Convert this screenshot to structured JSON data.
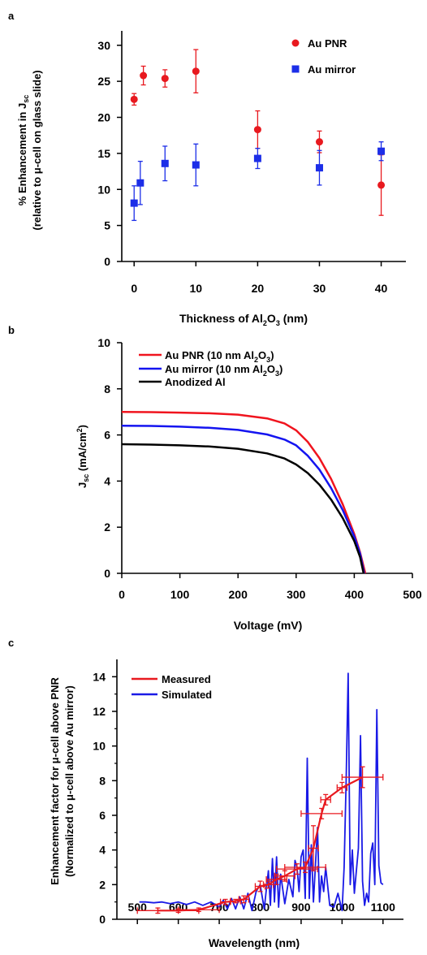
{
  "chart_data": [
    {
      "panel": "a",
      "type": "scatter",
      "title": "",
      "xlabel": "Thickness of Al2O3 (nm)",
      "xlabel_parts": {
        "pre": "Thickness of Al",
        "sub1": "2",
        "mid": "O",
        "sub2": "3",
        "post": " (nm)"
      },
      "ylabel": "% Enhancement in Jsc (relative to μ-cell on glass slide)",
      "ylabel_line1": {
        "pre": "% Enhancement in J",
        "sub": "sc"
      },
      "ylabel_line2": "(relative to μ-cell on glass slide)",
      "xlim": [
        -2,
        44
      ],
      "ylim": [
        0,
        32
      ],
      "xticks": [
        0,
        10,
        20,
        30,
        40
      ],
      "yticks": [
        0,
        5,
        10,
        15,
        20,
        25,
        30
      ],
      "legend_position": "top-right",
      "series": [
        {
          "name": "Au PNR",
          "color": "#e8191f",
          "marker": "circle",
          "x": [
            0,
            1.5,
            5,
            10,
            20,
            30,
            40
          ],
          "y": [
            22.5,
            25.8,
            25.4,
            26.4,
            18.3,
            16.6,
            10.6
          ],
          "err": [
            0.8,
            1.3,
            1.2,
            3.0,
            2.6,
            1.5,
            4.2
          ]
        },
        {
          "name": "Au mirror",
          "color": "#1c2ee8",
          "marker": "square",
          "x": [
            0,
            1,
            5,
            10,
            20,
            30,
            40
          ],
          "y": [
            8.1,
            10.9,
            13.6,
            13.4,
            14.3,
            13.0,
            15.3
          ],
          "err": [
            2.4,
            3.0,
            2.4,
            2.9,
            1.4,
            2.4,
            1.3
          ]
        }
      ]
    },
    {
      "panel": "b",
      "type": "line",
      "title": "",
      "xlabel": "Voltage (mV)",
      "ylabel": "Jsc (mA/cm2)",
      "ylabel_parts": {
        "pre": "J",
        "sub": "sc",
        "mid": " (mA/cm",
        "sup": "2",
        "post": ")"
      },
      "xlim": [
        0,
        500
      ],
      "ylim": [
        0,
        10
      ],
      "xticks": [
        0,
        100,
        200,
        300,
        400,
        500
      ],
      "yticks": [
        0,
        2,
        4,
        6,
        8,
        10
      ],
      "legend_position": "top-left",
      "series": [
        {
          "name": "Au PNR (10 nm Al2O3)",
          "label_parts": {
            "pre": "Au PNR (10 nm Al",
            "sub1": "2",
            "mid": "O",
            "sub2": "3",
            "post": ")"
          },
          "color": "#f0141e",
          "x": [
            0,
            50,
            100,
            150,
            200,
            250,
            280,
            300,
            320,
            340,
            360,
            380,
            400,
            410,
            419
          ],
          "y": [
            7.0,
            6.99,
            6.97,
            6.94,
            6.88,
            6.72,
            6.5,
            6.2,
            5.7,
            5.0,
            4.1,
            3.0,
            1.7,
            0.9,
            0
          ]
        },
        {
          "name": "Au mirror (10 nm Al2O3)",
          "label_parts": {
            "pre": "Au mirror (10 nm Al",
            "sub1": "2",
            "mid": "O",
            "sub2": "3",
            "post": ")"
          },
          "color": "#1414f0",
          "x": [
            0,
            50,
            100,
            150,
            200,
            250,
            280,
            300,
            320,
            340,
            360,
            380,
            400,
            410,
            417
          ],
          "y": [
            6.4,
            6.39,
            6.36,
            6.31,
            6.22,
            6.02,
            5.8,
            5.55,
            5.1,
            4.5,
            3.7,
            2.75,
            1.6,
            0.85,
            0
          ]
        },
        {
          "name": "Anodized Al",
          "color": "#000000",
          "x": [
            0,
            50,
            100,
            150,
            200,
            250,
            280,
            300,
            320,
            340,
            360,
            380,
            400,
            410,
            416
          ],
          "y": [
            5.6,
            5.58,
            5.55,
            5.5,
            5.4,
            5.2,
            4.98,
            4.72,
            4.35,
            3.85,
            3.2,
            2.4,
            1.4,
            0.7,
            0
          ]
        }
      ]
    },
    {
      "panel": "c",
      "type": "line",
      "title": "",
      "xlabel": "Wavelength (nm)",
      "ylabel": "Enhancement factor for μ-cell above PNR (Normalized to μ-cell above Au mirror)",
      "ylabel_line1": "Enhancement  factor for μ-cell above PNR",
      "ylabel_line2": "(Normalized to μ-cell above Au mirror)",
      "xlim": [
        450,
        1150
      ],
      "ylim": [
        0,
        15
      ],
      "xticks": [
        500,
        600,
        700,
        800,
        900,
        1000,
        1100
      ],
      "yticks": [
        0,
        2,
        4,
        6,
        8,
        10,
        12,
        14
      ],
      "legend_position": "top-left",
      "series": [
        {
          "name": "Measured",
          "color": "#e8191f",
          "marker": "error-bar",
          "x": [
            550,
            600,
            650,
            715,
            740,
            760,
            800,
            820,
            840,
            860,
            890,
            910,
            930,
            950,
            960,
            1000,
            1050
          ],
          "y": [
            0.5,
            0.5,
            0.55,
            1.0,
            1.05,
            1.15,
            1.9,
            2.0,
            2.3,
            2.5,
            2.9,
            3.0,
            4.1,
            6.1,
            6.9,
            7.6,
            8.2
          ],
          "xerr": [
            50,
            50,
            50,
            12,
            12,
            12,
            12,
            12,
            25,
            25,
            50,
            50,
            12,
            50,
            12,
            12,
            50
          ],
          "yerr": [
            0.15,
            0.1,
            0.1,
            0.15,
            0.1,
            0.2,
            0.3,
            0.2,
            0.3,
            0.3,
            0.3,
            0.3,
            1.3,
            0.3,
            0.3,
            0.3,
            0.6
          ]
        },
        {
          "name": "Simulated",
          "color": "#1a1ae6",
          "x": [
            505,
            520,
            540,
            560,
            580,
            600,
            620,
            640,
            660,
            680,
            700,
            710,
            720,
            730,
            740,
            750,
            760,
            770,
            780,
            790,
            800,
            810,
            820,
            825,
            830,
            835,
            840,
            845,
            850,
            860,
            870,
            880,
            885,
            890,
            895,
            900,
            905,
            910,
            915,
            920,
            925,
            930,
            940,
            945,
            950,
            955,
            960,
            970,
            980,
            990,
            1000,
            1005,
            1010,
            1015,
            1020,
            1025,
            1030,
            1040,
            1045,
            1050,
            1055,
            1060,
            1065,
            1070,
            1075,
            1080,
            1085,
            1090,
            1095,
            1100
          ],
          "y": [
            1.0,
            1.0,
            0.95,
            1.0,
            0.9,
            1.0,
            0.85,
            1.0,
            0.8,
            1.0,
            0.7,
            1.1,
            0.6,
            1.2,
            0.6,
            1.3,
            0.6,
            1.5,
            0.5,
            1.6,
            2.0,
            0.6,
            2.8,
            0.8,
            3.5,
            1.0,
            3.6,
            0.7,
            2.6,
            0.9,
            2.3,
            1.3,
            3.4,
            3.0,
            1.6,
            3.6,
            4.0,
            1.2,
            9.3,
            1.2,
            4.3,
            1.0,
            5.3,
            1.0,
            2.5,
            1.6,
            3.0,
            0.8,
            0.7,
            1.5,
            0.5,
            3.0,
            8.0,
            14.2,
            2.0,
            4.0,
            1.5,
            4.1,
            10.6,
            2.2,
            0.8,
            1.5,
            1.0,
            3.8,
            4.4,
            2.0,
            12.1,
            3.1,
            2.1,
            2.0
          ]
        }
      ]
    }
  ],
  "panels": {
    "a": {
      "letter": "a"
    },
    "b": {
      "letter": "b"
    },
    "c": {
      "letter": "c"
    }
  }
}
